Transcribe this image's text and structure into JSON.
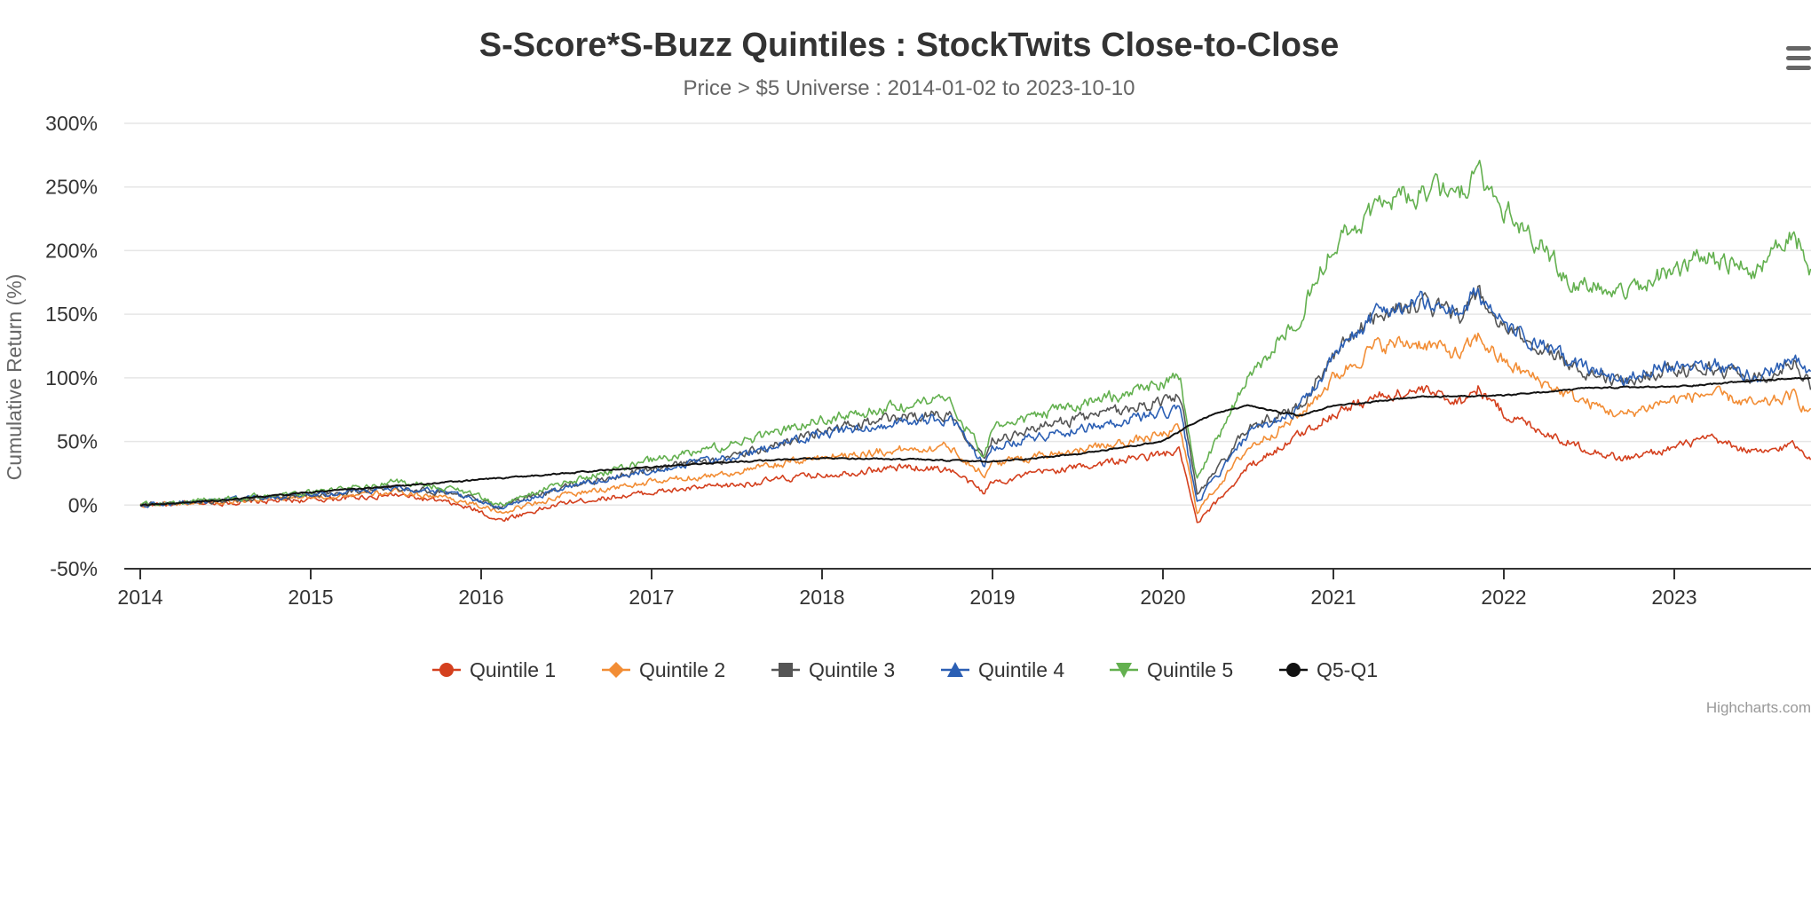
{
  "chart_data": {
    "type": "line",
    "title": "S-Score*S-Buzz Quintiles : StockTwits Close-to-Close",
    "subtitle": "Price > $5 Universe : 2014-01-02 to 2023-10-10",
    "xlabel": "",
    "ylabel": "Cumulative Return (%)",
    "xlim": [
      2014.0,
      2023.8
    ],
    "ylim": [
      -50,
      300
    ],
    "x_ticks": [
      "2014",
      "2015",
      "2016",
      "2017",
      "2018",
      "2019",
      "2020",
      "2021",
      "2022",
      "2023"
    ],
    "y_ticks": [
      "-50%",
      "0%",
      "50%",
      "100%",
      "150%",
      "200%",
      "250%",
      "300%"
    ],
    "y_tick_values": [
      -50,
      0,
      50,
      100,
      150,
      200,
      250,
      300
    ],
    "legend_position": "bottom",
    "credits": "Highcharts.com",
    "series": [
      {
        "name": "Quintile 1",
        "color": "#d4401e",
        "marker": "circle",
        "x": [
          2014.0,
          2014.5,
          2015.0,
          2015.5,
          2015.8,
          2016.0,
          2016.1,
          2016.5,
          2017.0,
          2017.5,
          2018.0,
          2018.5,
          2018.75,
          2018.95,
          2019.0,
          2019.3,
          2019.6,
          2020.0,
          2020.1,
          2020.2,
          2020.5,
          2020.8,
          2021.0,
          2021.25,
          2021.5,
          2021.75,
          2021.85,
          2022.0,
          2022.4,
          2022.7,
          2022.9,
          2023.2,
          2023.5,
          2023.7,
          2023.8
        ],
        "values": [
          0,
          2,
          4,
          8,
          2,
          -5,
          -12,
          2,
          10,
          16,
          24,
          30,
          28,
          10,
          18,
          26,
          32,
          40,
          42,
          -15,
          30,
          55,
          72,
          85,
          90,
          82,
          92,
          72,
          48,
          36,
          42,
          52,
          40,
          48,
          38
        ]
      },
      {
        "name": "Quintile 2",
        "color": "#f28d35",
        "marker": "diamond",
        "x": [
          2014.0,
          2014.5,
          2015.0,
          2015.5,
          2015.8,
          2016.0,
          2016.1,
          2016.5,
          2017.0,
          2017.5,
          2018.0,
          2018.5,
          2018.75,
          2018.95,
          2019.0,
          2019.3,
          2019.6,
          2020.0,
          2020.1,
          2020.2,
          2020.5,
          2020.8,
          2021.0,
          2021.25,
          2021.5,
          2021.75,
          2021.85,
          2022.0,
          2022.4,
          2022.7,
          2022.9,
          2023.2,
          2023.5,
          2023.7,
          2023.8
        ],
        "values": [
          0,
          3,
          6,
          10,
          6,
          -1,
          -6,
          8,
          18,
          26,
          38,
          44,
          46,
          24,
          32,
          40,
          45,
          55,
          60,
          -5,
          45,
          70,
          100,
          125,
          128,
          118,
          132,
          112,
          85,
          70,
          80,
          88,
          78,
          86,
          72
        ]
      },
      {
        "name": "Quintile 3",
        "color": "#555555",
        "marker": "square",
        "x": [
          2014.0,
          2014.5,
          2015.0,
          2015.5,
          2015.8,
          2016.0,
          2016.1,
          2016.5,
          2017.0,
          2017.5,
          2018.0,
          2018.5,
          2018.75,
          2018.95,
          2019.0,
          2019.3,
          2019.6,
          2020.0,
          2020.1,
          2020.2,
          2020.5,
          2020.8,
          2021.0,
          2021.25,
          2021.5,
          2021.75,
          2021.85,
          2022.0,
          2022.4,
          2022.7,
          2022.9,
          2023.2,
          2023.5,
          2023.7,
          2023.8
        ],
        "values": [
          0,
          4,
          8,
          14,
          10,
          4,
          -1,
          15,
          28,
          38,
          58,
          70,
          72,
          38,
          52,
          62,
          70,
          82,
          86,
          8,
          60,
          78,
          118,
          150,
          158,
          150,
          165,
          138,
          110,
          95,
          105,
          108,
          100,
          112,
          95
        ]
      },
      {
        "name": "Quintile 4",
        "color": "#2b5fb4",
        "marker": "triangle",
        "x": [
          2014.0,
          2014.5,
          2015.0,
          2015.5,
          2015.8,
          2016.0,
          2016.1,
          2016.5,
          2017.0,
          2017.5,
          2018.0,
          2018.5,
          2018.75,
          2018.95,
          2019.0,
          2019.3,
          2019.6,
          2020.0,
          2020.1,
          2020.2,
          2020.5,
          2020.8,
          2021.0,
          2021.25,
          2021.5,
          2021.75,
          2021.85,
          2022.0,
          2022.4,
          2022.7,
          2022.9,
          2023.2,
          2023.5,
          2023.7,
          2023.8
        ],
        "values": [
          0,
          4,
          8,
          14,
          10,
          3,
          -3,
          14,
          28,
          38,
          56,
          66,
          68,
          33,
          46,
          55,
          62,
          72,
          75,
          2,
          55,
          76,
          115,
          152,
          160,
          152,
          168,
          140,
          112,
          98,
          110,
          112,
          100,
          118,
          100
        ]
      },
      {
        "name": "Quintile 5",
        "color": "#63b04f",
        "marker": "triangle-down",
        "x": [
          2014.0,
          2014.5,
          2015.0,
          2015.5,
          2015.8,
          2016.0,
          2016.1,
          2016.5,
          2017.0,
          2017.5,
          2018.0,
          2018.5,
          2018.75,
          2018.95,
          2019.0,
          2019.3,
          2019.6,
          2020.0,
          2020.1,
          2020.2,
          2020.5,
          2020.8,
          2021.0,
          2021.25,
          2021.5,
          2021.75,
          2021.85,
          2022.0,
          2022.4,
          2022.7,
          2022.9,
          2023.2,
          2023.5,
          2023.7,
          2023.8
        ],
        "values": [
          0,
          5,
          10,
          18,
          14,
          6,
          0,
          18,
          35,
          48,
          68,
          78,
          82,
          38,
          60,
          72,
          82,
          95,
          100,
          20,
          100,
          150,
          205,
          235,
          245,
          250,
          265,
          235,
          175,
          165,
          180,
          195,
          185,
          215,
          185
        ]
      },
      {
        "name": "Q5-Q1",
        "color": "#111111",
        "marker": "circle",
        "x": [
          2014.0,
          2014.5,
          2015.0,
          2015.5,
          2016.0,
          2016.5,
          2017.0,
          2017.5,
          2018.0,
          2018.5,
          2019.0,
          2019.5,
          2020.0,
          2020.15,
          2020.3,
          2020.5,
          2020.8,
          2021.0,
          2021.5,
          2022.0,
          2022.5,
          2023.0,
          2023.5,
          2023.8
        ],
        "values": [
          0,
          4,
          10,
          15,
          20,
          25,
          30,
          34,
          37,
          36,
          34,
          40,
          50,
          62,
          72,
          78,
          70,
          78,
          85,
          86,
          92,
          93,
          98,
          100
        ]
      }
    ]
  }
}
